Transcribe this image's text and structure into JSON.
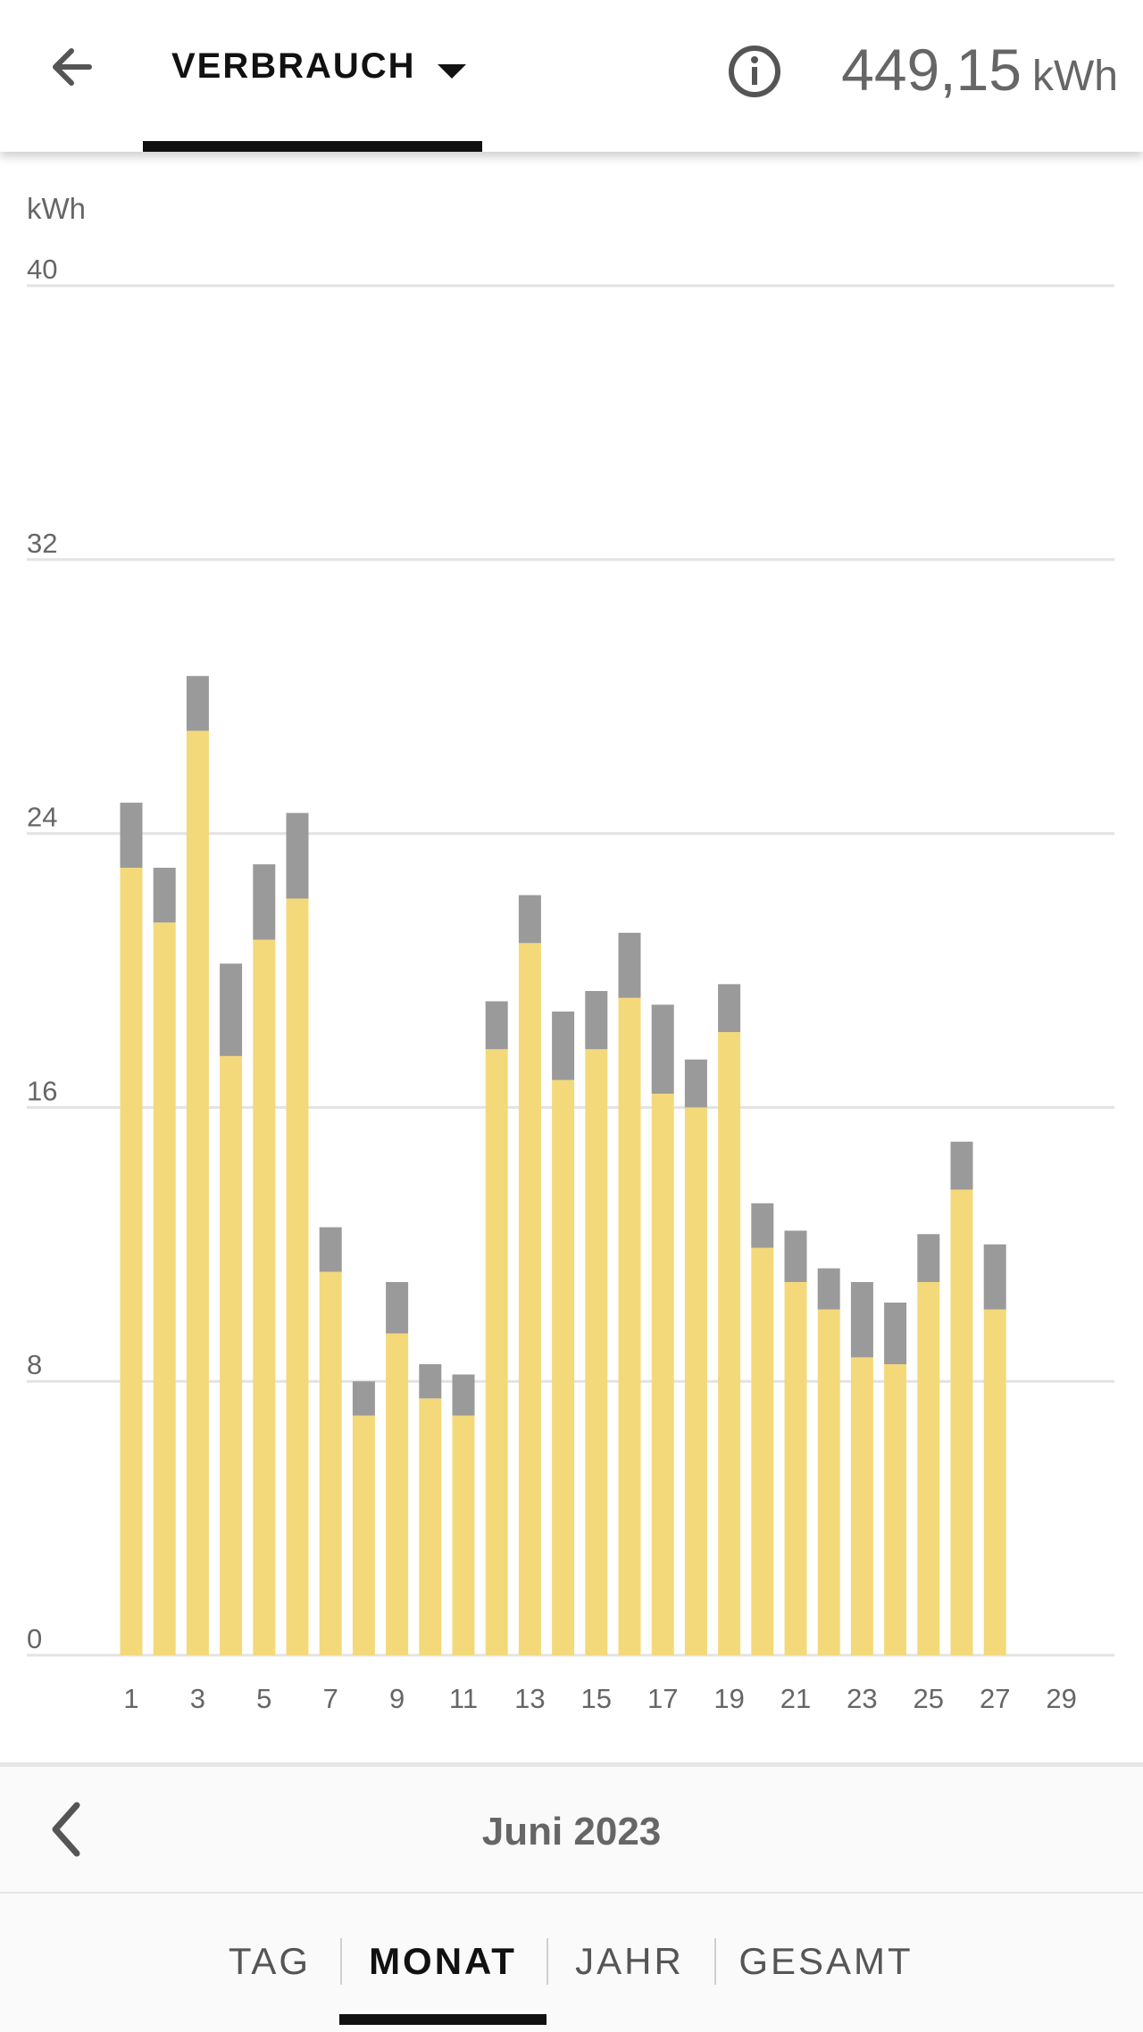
{
  "header": {
    "view_label": "VERBRAUCH",
    "total_value": "449,15",
    "total_unit": "kWh",
    "back_icon": "arrow-left-icon",
    "info_icon": "info-circle-icon",
    "dropdown_icon": "caret-down-icon"
  },
  "chart_data": {
    "type": "bar",
    "stacked": true,
    "ylabel": "kWh",
    "ylim": [
      0,
      40
    ],
    "yticks": [
      "0",
      "8",
      "16",
      "24",
      "32",
      "40"
    ],
    "xlim": [
      1,
      30
    ],
    "xticks": [
      "1",
      "3",
      "5",
      "7",
      "9",
      "11",
      "13",
      "15",
      "17",
      "19",
      "21",
      "23",
      "25",
      "27",
      "29"
    ],
    "categories": [
      1,
      2,
      3,
      4,
      5,
      6,
      7,
      8,
      9,
      10,
      11,
      12,
      13,
      14,
      15,
      16,
      17,
      18,
      19,
      20,
      21,
      22,
      23,
      24,
      25,
      26,
      27
    ],
    "series": [
      {
        "color": "#f4d97a",
        "values": [
          23.0,
          21.4,
          27.0,
          17.5,
          20.9,
          22.1,
          11.2,
          7.0,
          9.4,
          7.5,
          7.0,
          17.7,
          20.8,
          16.8,
          17.7,
          19.2,
          16.4,
          16.0,
          18.2,
          11.9,
          10.9,
          10.1,
          8.7,
          8.5,
          10.9,
          13.6,
          10.1
        ]
      },
      {
        "color": "#9a9a9a",
        "values": [
          1.9,
          1.6,
          1.6,
          2.7,
          2.2,
          2.5,
          1.3,
          1.0,
          1.5,
          1.0,
          1.2,
          1.4,
          1.4,
          2.0,
          1.7,
          1.9,
          2.6,
          1.4,
          1.4,
          1.3,
          1.5,
          1.2,
          2.2,
          1.8,
          1.4,
          1.4,
          1.9
        ]
      }
    ],
    "grid": true
  },
  "navigation": {
    "month_label": "Juni 2023",
    "prev_icon": "chevron-left-icon"
  },
  "periods": {
    "tabs": [
      {
        "label": "TAG",
        "active": false
      },
      {
        "label": "MONAT",
        "active": true
      },
      {
        "label": "JAHR",
        "active": false
      },
      {
        "label": "GESAMT",
        "active": false
      }
    ]
  }
}
